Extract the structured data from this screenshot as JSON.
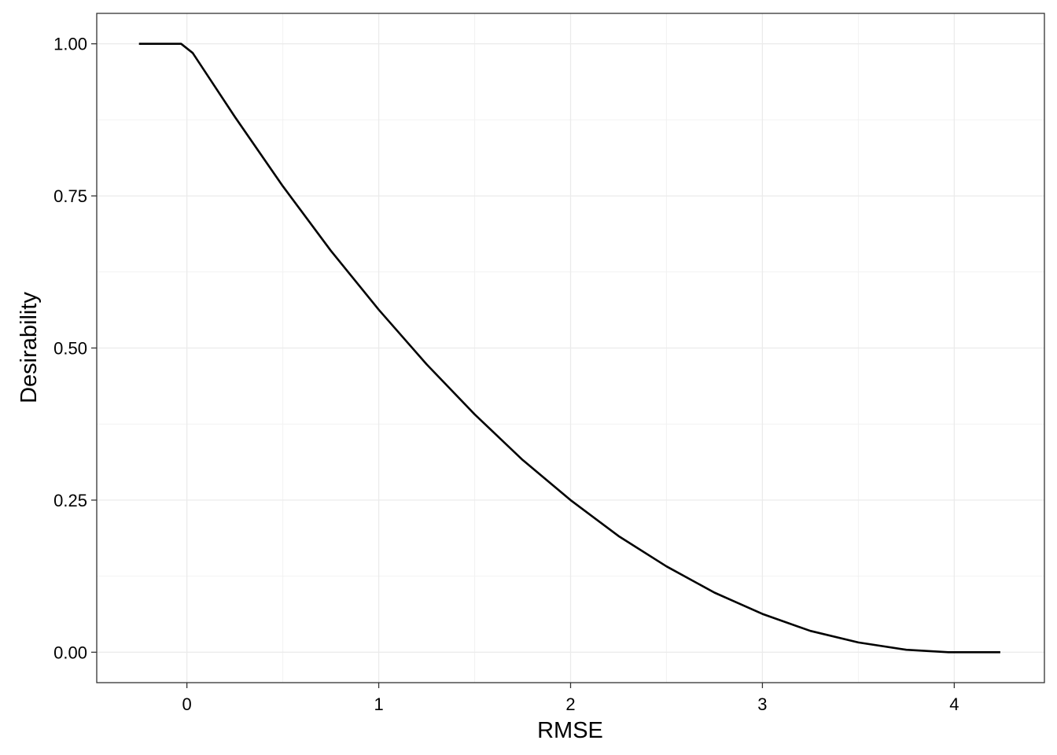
{
  "chart_data": {
    "type": "line",
    "title": "",
    "xlabel": "RMSE",
    "ylabel": "Desirability",
    "xlim": [
      -0.47,
      4.47
    ],
    "ylim": [
      -0.05,
      1.05
    ],
    "x_ticks": [
      0,
      1,
      2,
      3,
      4
    ],
    "x_tick_labels": [
      "0",
      "1",
      "2",
      "3",
      "4"
    ],
    "y_ticks": [
      0,
      0.25,
      0.5,
      0.75,
      1
    ],
    "y_tick_labels": [
      "0.00",
      "0.25",
      "0.50",
      "0.75",
      "1.00"
    ],
    "grid": true,
    "legend": "none",
    "series": [
      {
        "color": "#000000",
        "x": [
          -0.25,
          -0.03,
          0.03,
          0.25,
          0.5,
          0.75,
          1.0,
          1.25,
          1.5,
          1.75,
          2.0,
          2.25,
          2.5,
          2.75,
          3.0,
          3.25,
          3.5,
          3.75,
          3.97,
          4.24
        ],
        "y": [
          1.0,
          1.0,
          0.985,
          0.88,
          0.766,
          0.66,
          0.563,
          0.473,
          0.391,
          0.316,
          0.25,
          0.191,
          0.141,
          0.098,
          0.063,
          0.035,
          0.016,
          0.004,
          0.0,
          0.0
        ]
      }
    ]
  }
}
